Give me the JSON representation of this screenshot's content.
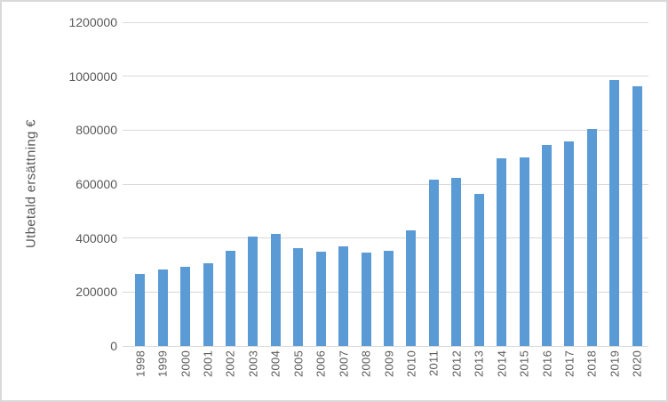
{
  "chart_data": {
    "type": "bar",
    "title": "",
    "xlabel": "",
    "ylabel": "Utbetald ersättning €",
    "categories": [
      "1998",
      "1999",
      "2000",
      "2001",
      "2002",
      "2003",
      "2004",
      "2005",
      "2006",
      "2007",
      "2008",
      "2009",
      "2010",
      "2011",
      "2012",
      "2013",
      "2014",
      "2015",
      "2016",
      "2017",
      "2018",
      "2019",
      "2020"
    ],
    "values": [
      268000,
      282000,
      292000,
      308000,
      354000,
      404000,
      414000,
      364000,
      348000,
      370000,
      346000,
      352000,
      429000,
      615000,
      622000,
      563000,
      694000,
      700000,
      745000,
      757000,
      803000,
      985000,
      963000
    ],
    "ylim": [
      0,
      1200000
    ],
    "ytick_step": 200000,
    "ytick_labels": [
      "0",
      "200000",
      "400000",
      "600000",
      "800000",
      "1000000",
      "1200000"
    ],
    "grid": true,
    "legend_position": "none",
    "colors": {
      "bar": "#5b9bd5",
      "gridline": "#d9d9d9",
      "axis_text": "#595959",
      "border": "#d9d9d9",
      "background": "#ffffff"
    }
  }
}
